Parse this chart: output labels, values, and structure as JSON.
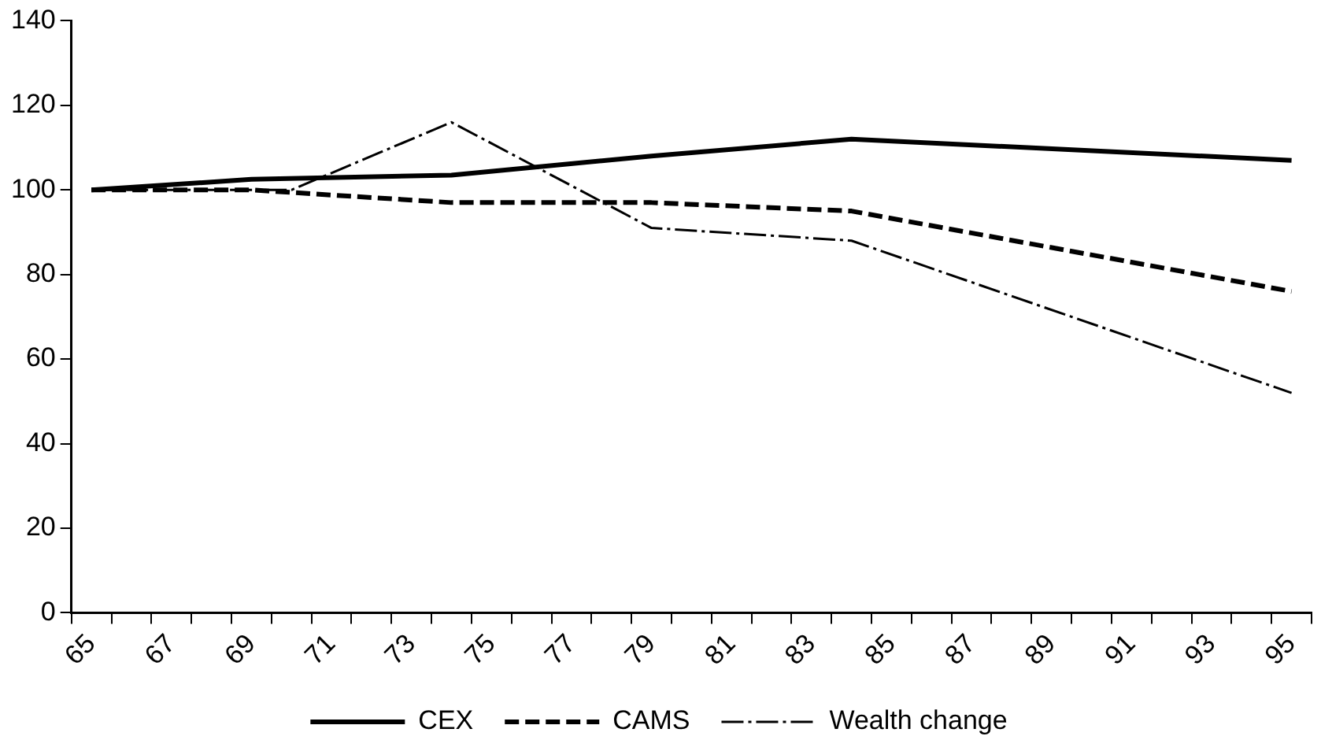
{
  "chart_data": {
    "type": "line",
    "categories": [
      "65",
      null,
      "67",
      null,
      "69",
      null,
      "71",
      null,
      "73",
      null,
      "75",
      null,
      "77",
      null,
      "79",
      null,
      "81",
      null,
      "83",
      null,
      "85",
      null,
      "87",
      null,
      "89",
      null,
      "91",
      null,
      "93",
      null,
      "95"
    ],
    "series": [
      {
        "name": "CEX",
        "color": "#000000",
        "line_style": "solid",
        "values": [
          100,
          null,
          null,
          null,
          102.5,
          null,
          null,
          null,
          null,
          103.5,
          null,
          null,
          null,
          null,
          108,
          null,
          null,
          null,
          null,
          112,
          null,
          null,
          null,
          null,
          null,
          null,
          null,
          null,
          null,
          null,
          107
        ]
      },
      {
        "name": "CAMS",
        "color": "#000000",
        "line_style": "dashed",
        "values": [
          100,
          null,
          null,
          null,
          100,
          null,
          null,
          null,
          null,
          97,
          null,
          null,
          null,
          null,
          97,
          null,
          null,
          null,
          null,
          95,
          null,
          null,
          null,
          null,
          null,
          null,
          null,
          null,
          null,
          null,
          76
        ]
      },
      {
        "name": "Wealth change",
        "color": "#000000",
        "line_style": "dashdot",
        "values": [
          100,
          null,
          null,
          null,
          null,
          100,
          null,
          null,
          null,
          116,
          null,
          null,
          null,
          null,
          91,
          null,
          null,
          null,
          null,
          88,
          null,
          null,
          null,
          null,
          null,
          null,
          null,
          null,
          null,
          null,
          52
        ]
      }
    ],
    "ylim": [
      0,
      140
    ],
    "yticks": [
      0,
      20,
      40,
      60,
      80,
      100,
      120,
      140
    ],
    "grid": false,
    "legend": "bottom",
    "marker": "none"
  }
}
